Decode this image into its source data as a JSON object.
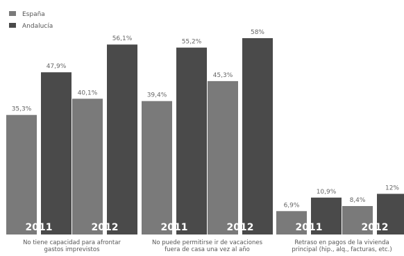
{
  "chart_data": {
    "type": "bar",
    "title": "",
    "xlabel": "",
    "ylabel": "",
    "ylim": [
      0,
      65
    ],
    "legend_position": "top-left",
    "grid": false,
    "groups": [
      {
        "label": "No tiene capacidad para afrontar\ngastos imprevistos",
        "periods": [
          {
            "year": "2011",
            "values": [
              35.3,
              47.9
            ],
            "labels": [
              "35,3%",
              "47,9%"
            ]
          },
          {
            "year": "2012",
            "values": [
              40.1,
              56.1
            ],
            "labels": [
              "40,1%",
              "56,1%"
            ]
          }
        ]
      },
      {
        "label": "No puede permitirse ir de vacaciones\nfuera de casa una vez al año",
        "periods": [
          {
            "year": "2011",
            "values": [
              39.4,
              55.2
            ],
            "labels": [
              "39,4%",
              "55,2%"
            ]
          },
          {
            "year": "2012",
            "values": [
              45.3,
              58
            ],
            "labels": [
              "45,3%",
              "58%"
            ]
          }
        ]
      },
      {
        "label": "Retraso en pagos de la vivienda\nprincipal (hip., alq., facturas, etc.)",
        "periods": [
          {
            "year": "2011",
            "values": [
              6.9,
              10.9
            ],
            "labels": [
              "6,9%",
              "10,9%"
            ]
          },
          {
            "year": "2012",
            "values": [
              8.4,
              12
            ],
            "labels": [
              "8,4%",
              "12%"
            ]
          }
        ]
      }
    ],
    "series": [
      {
        "name": "España",
        "color": "#7a7a7a"
      },
      {
        "name": "Andalucía",
        "color": "#4a4a4a"
      }
    ]
  }
}
